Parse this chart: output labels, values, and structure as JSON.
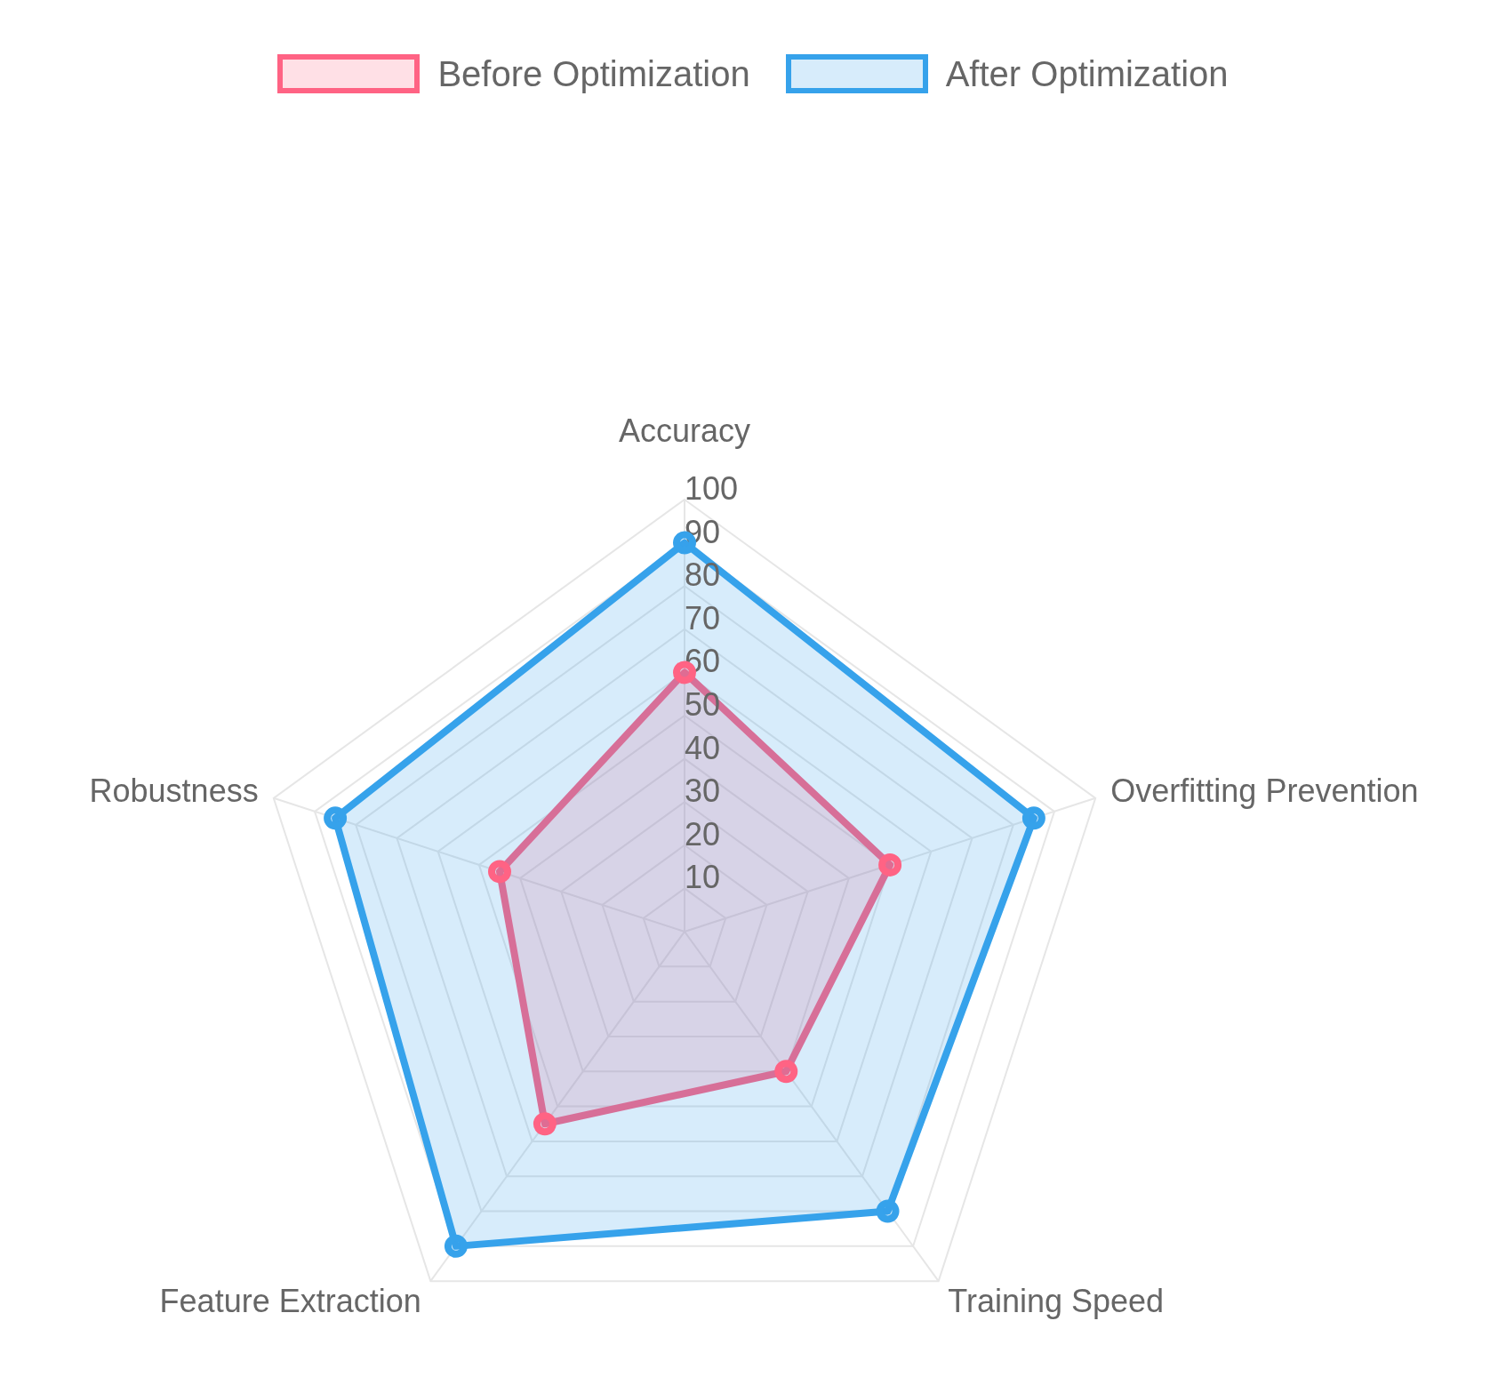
{
  "chart_data": {
    "type": "radar",
    "categories": [
      "Accuracy",
      "Overfitting Prevention",
      "Training Speed",
      "Feature Extraction",
      "Robustness"
    ],
    "series": [
      {
        "name": "Before Optimization",
        "color": "#ff6384",
        "values": [
          60,
          50,
          40,
          55,
          45
        ]
      },
      {
        "name": "After Optimization",
        "color": "#36a2eb",
        "values": [
          90,
          85,
          80,
          90,
          85
        ]
      }
    ],
    "ylim": [
      0,
      100
    ],
    "yticks": [
      10,
      20,
      30,
      40,
      50,
      60,
      70,
      80,
      90,
      100
    ],
    "grid": true,
    "legend": "top",
    "marker": "circle"
  }
}
